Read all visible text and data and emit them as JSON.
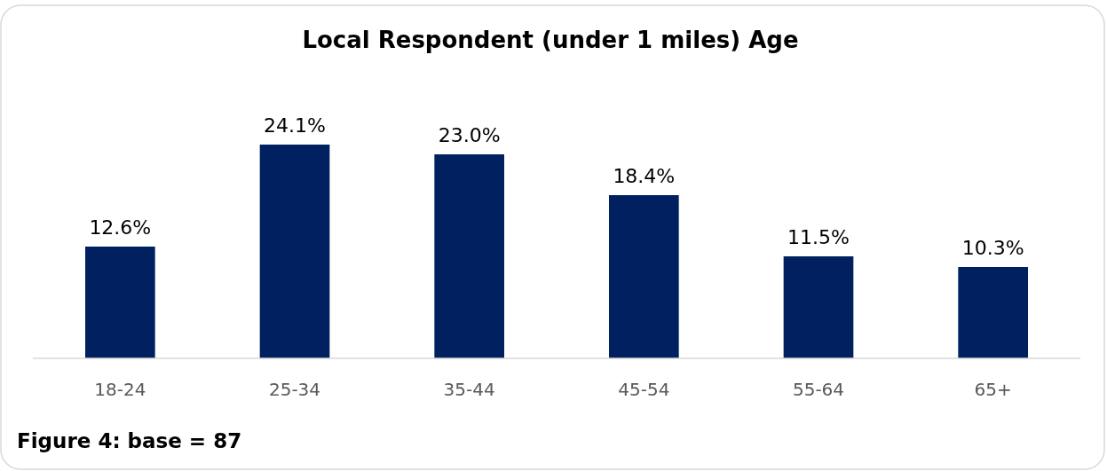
{
  "chart_data": {
    "type": "bar",
    "title": "Local Respondent (under 1 miles) Age",
    "categories": [
      "18-24",
      "25-34",
      "35-44",
      "45-54",
      "55-64",
      "65+"
    ],
    "values": [
      12.6,
      24.1,
      23.0,
      18.4,
      11.5,
      10.3
    ],
    "value_labels": [
      "12.6%",
      "24.1%",
      "23.0%",
      "18.4%",
      "11.5%",
      "10.3%"
    ],
    "color": "#002060",
    "annotations": [
      "Figure 4: base = 87"
    ]
  }
}
